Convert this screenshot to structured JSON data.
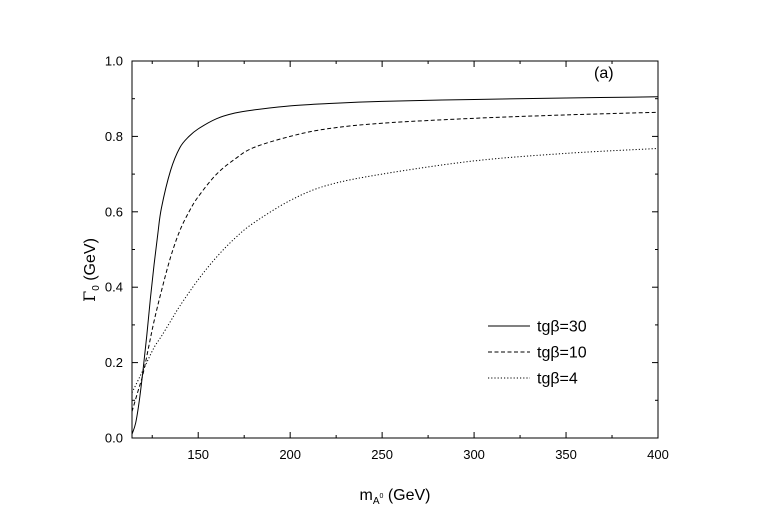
{
  "chart_data": {
    "type": "line",
    "panel_label": "(a)",
    "xlabel": {
      "main": "m",
      "sub": "A",
      "sup": "0",
      "unit": " (GeV)"
    },
    "ylabel": {
      "symbol": "Γ",
      "sub": "0",
      "unit": " (GeV)"
    },
    "xlim": [
      114,
      400
    ],
    "ylim": [
      0.0,
      1.0
    ],
    "xticks": [
      150,
      200,
      250,
      300,
      350,
      400
    ],
    "yticks": [
      "0.0",
      "0.2",
      "0.4",
      "0.6",
      "0.8",
      "1.0"
    ],
    "grid": false,
    "legend_position": "bottom-right",
    "series": [
      {
        "name": "tgβ=30",
        "dash": "solid",
        "x": [
          114,
          116,
          118,
          120,
          122,
          124,
          126,
          128,
          130,
          135,
          140,
          145,
          150,
          160,
          170,
          180,
          200,
          220,
          250,
          300,
          350,
          400
        ],
        "y": [
          0.01,
          0.04,
          0.1,
          0.18,
          0.27,
          0.37,
          0.46,
          0.54,
          0.61,
          0.71,
          0.77,
          0.8,
          0.82,
          0.847,
          0.862,
          0.87,
          0.881,
          0.887,
          0.893,
          0.898,
          0.902,
          0.905
        ]
      },
      {
        "name": "tgβ=10",
        "dash": "dashed",
        "x": [
          114,
          117,
          120,
          123,
          126,
          130,
          135,
          140,
          145,
          150,
          160,
          170,
          180,
          200,
          220,
          250,
          300,
          350,
          400
        ],
        "y": [
          0.07,
          0.12,
          0.17,
          0.24,
          0.31,
          0.39,
          0.48,
          0.55,
          0.6,
          0.64,
          0.7,
          0.74,
          0.77,
          0.8,
          0.82,
          0.835,
          0.848,
          0.857,
          0.864
        ]
      },
      {
        "name": "tgβ=4",
        "dash": "dotted",
        "x": [
          114,
          118,
          122,
          126,
          130,
          135,
          140,
          150,
          160,
          170,
          180,
          200,
          220,
          250,
          300,
          350,
          400
        ],
        "y": [
          0.12,
          0.16,
          0.2,
          0.24,
          0.27,
          0.31,
          0.35,
          0.42,
          0.48,
          0.53,
          0.57,
          0.63,
          0.67,
          0.7,
          0.735,
          0.755,
          0.768
        ]
      }
    ]
  }
}
